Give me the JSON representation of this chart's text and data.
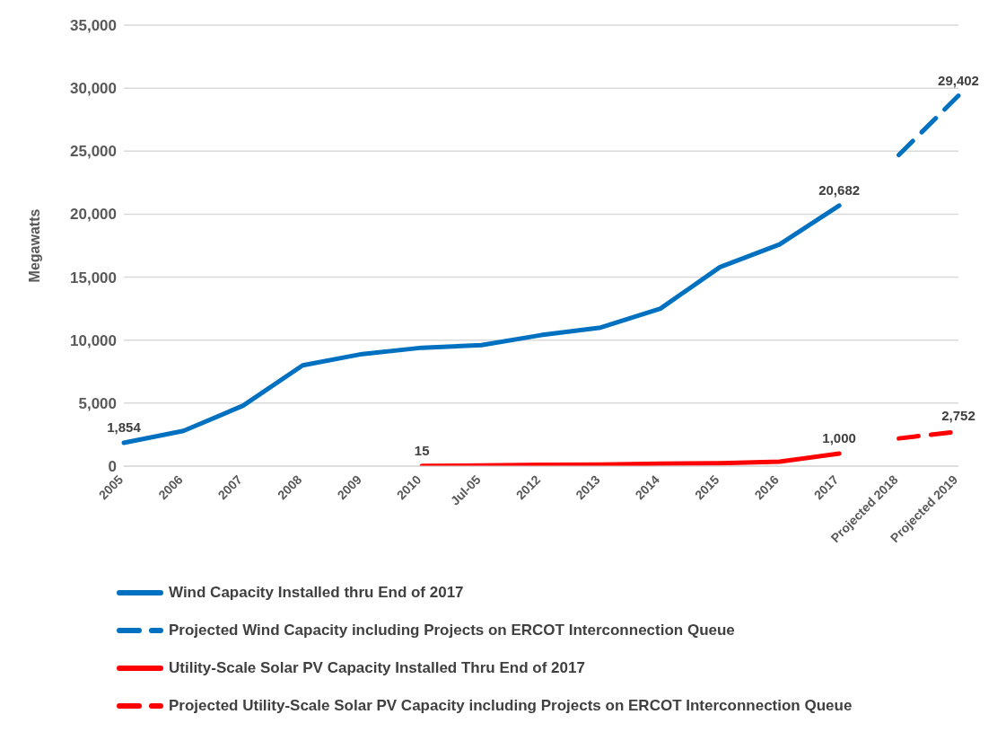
{
  "chart_data": {
    "type": "line",
    "ylabel": "Megawatts",
    "categories": [
      "2005",
      "2006",
      "2007",
      "2008",
      "2009",
      "2010",
      "Jul-05",
      "2012",
      "2013",
      "2014",
      "2015",
      "2016",
      "2017",
      "Projected 2018",
      "Projected 2019"
    ],
    "series": [
      {
        "name": "Wind Capacity Installed thru End of 2017",
        "color": "#0070c0",
        "line_style": "solid",
        "values": [
          1854,
          2800,
          4800,
          8000,
          8900,
          9400,
          9600,
          10400,
          11000,
          12500,
          15800,
          17600,
          20682,
          null,
          null
        ],
        "value_labels": [
          "1,854",
          null,
          null,
          null,
          null,
          null,
          null,
          null,
          null,
          null,
          null,
          null,
          "20,682",
          null,
          null
        ]
      },
      {
        "name": "Projected Wind Capacity including Projects on ERCOT Interconnection Queue",
        "color": "#0070c0",
        "line_style": "dashed",
        "values": [
          null,
          null,
          null,
          null,
          null,
          null,
          null,
          null,
          null,
          null,
          null,
          null,
          null,
          24700,
          29402
        ],
        "value_labels": [
          null,
          null,
          null,
          null,
          null,
          null,
          null,
          null,
          null,
          null,
          null,
          null,
          null,
          null,
          "29,402"
        ]
      },
      {
        "name": "Utility-Scale Solar PV Capacity Installed Thru End of 2017",
        "color": "#ff0000",
        "line_style": "solid",
        "values": [
          null,
          null,
          null,
          null,
          null,
          15,
          50,
          100,
          120,
          200,
          230,
          350,
          1000,
          null,
          null
        ],
        "value_labels": [
          null,
          null,
          null,
          null,
          null,
          "15",
          null,
          null,
          null,
          null,
          null,
          null,
          "1,000",
          null,
          null
        ]
      },
      {
        "name": "Projected Utility-Scale Solar PV Capacity including Projects on ERCOT Interconnection Queue",
        "color": "#ff0000",
        "line_style": "dashed",
        "values": [
          null,
          null,
          null,
          null,
          null,
          null,
          null,
          null,
          null,
          null,
          null,
          null,
          null,
          2200,
          2752
        ],
        "value_labels": [
          null,
          null,
          null,
          null,
          null,
          null,
          null,
          null,
          null,
          null,
          null,
          null,
          null,
          null,
          "2,752"
        ]
      }
    ],
    "ylim": [
      0,
      35000
    ],
    "yticks": [
      0,
      {
        "value": 5000,
        "label": "5,000"
      },
      {
        "value": 10000,
        "label": "10,000"
      },
      {
        "value": 15000,
        "label": "15,000"
      },
      {
        "value": 20000,
        "label": "20,000"
      },
      {
        "value": 25000,
        "label": "25,000"
      },
      {
        "value": 30000,
        "label": "30,000"
      },
      {
        "value": 35000,
        "label": "35,000"
      }
    ],
    "grid": "y",
    "legend": "bottom",
    "marker": "none"
  }
}
